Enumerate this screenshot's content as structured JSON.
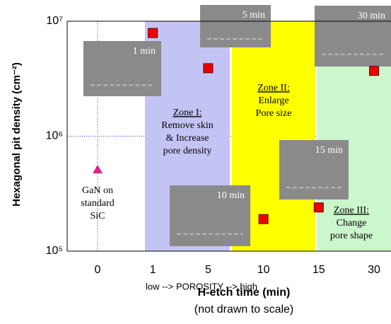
{
  "chart_data": {
    "type": "scatter",
    "ylabel": "Hexagonal pit density (cm⁻²)",
    "xlabel": "H-etch time (min)",
    "xlabel_note": "(not drawn to scale)",
    "xaxis_annotation": "low --> POROSITY --> high",
    "categories": [
      "0",
      "1",
      "5",
      "10",
      "15",
      "30"
    ],
    "series": [
      {
        "color": "#e0208c",
        "marker": "triangle",
        "values": [
          510000,
          null,
          null,
          null,
          null,
          null
        ]
      },
      {
        "color": "#ee0000",
        "marker": "square",
        "values": [
          null,
          7900000,
          3900000,
          190000,
          240000,
          3700000
        ]
      }
    ],
    "ylim": [
      100000,
      10000000
    ],
    "log_y": true,
    "yticks": [
      {
        "value": 100000,
        "label": "10⁵"
      },
      {
        "value": 1000000,
        "label": "10⁶"
      },
      {
        "value": 10000000,
        "label": "10⁷"
      }
    ],
    "grid": true,
    "zones": [
      {
        "title": "Zone I:",
        "lines": [
          "Remove skin",
          "& Increase",
          "pore density"
        ]
      },
      {
        "title": "Zone II:",
        "lines": [
          "Enlarge",
          "Pore size"
        ]
      },
      {
        "title": "Zone III:",
        "lines": [
          "Change",
          "pore shape"
        ]
      }
    ],
    "baseline_note": [
      "GaN on",
      "standard",
      "SiC"
    ],
    "images": [
      "1 min",
      "5 min",
      "30 min",
      "15 min",
      "10 min"
    ]
  }
}
